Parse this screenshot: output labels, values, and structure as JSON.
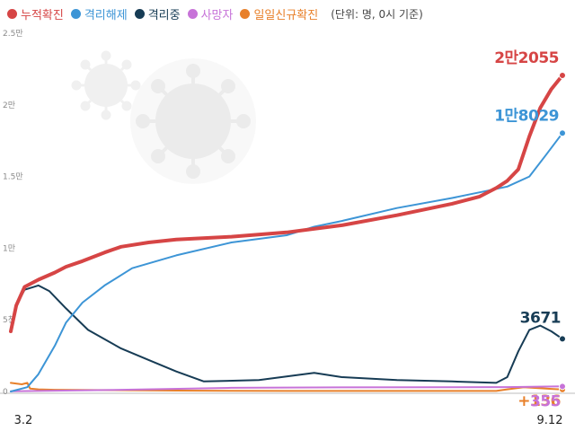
{
  "chart_data": {
    "type": "line",
    "title": "",
    "unit_note": "(단위: 명, 0시 기준)",
    "x_start_label": "3.2",
    "x_end_label": "9.12",
    "y_ticks": [
      "0",
      "5천",
      "1만",
      "1.5만",
      "2만",
      "2.5만"
    ],
    "ylim": [
      0,
      25000
    ],
    "grid": false,
    "legend_position": "top-left",
    "series": [
      {
        "name": "누적확진",
        "color": "#d64545",
        "end_label": "2만2055",
        "points": [
          [
            0,
            4200
          ],
          [
            0.01,
            6000
          ],
          [
            0.025,
            7300
          ],
          [
            0.05,
            7800
          ],
          [
            0.08,
            8300
          ],
          [
            0.1,
            8700
          ],
          [
            0.13,
            9100
          ],
          [
            0.17,
            9700
          ],
          [
            0.2,
            10100
          ],
          [
            0.25,
            10400
          ],
          [
            0.3,
            10600
          ],
          [
            0.4,
            10800
          ],
          [
            0.5,
            11100
          ],
          [
            0.6,
            11600
          ],
          [
            0.7,
            12300
          ],
          [
            0.75,
            12700
          ],
          [
            0.8,
            13100
          ],
          [
            0.85,
            13600
          ],
          [
            0.88,
            14200
          ],
          [
            0.9,
            14700
          ],
          [
            0.92,
            15500
          ],
          [
            0.94,
            17800
          ],
          [
            0.96,
            19800
          ],
          [
            0.98,
            21100
          ],
          [
            1,
            22055
          ]
        ]
      },
      {
        "name": "격리해제",
        "color": "#3d95d6",
        "end_label": "1만8029",
        "points": [
          [
            0,
            0
          ],
          [
            0.03,
            300
          ],
          [
            0.05,
            1200
          ],
          [
            0.08,
            3200
          ],
          [
            0.1,
            4800
          ],
          [
            0.13,
            6200
          ],
          [
            0.17,
            7400
          ],
          [
            0.22,
            8600
          ],
          [
            0.3,
            9500
          ],
          [
            0.4,
            10400
          ],
          [
            0.5,
            10900
          ],
          [
            0.55,
            11500
          ],
          [
            0.6,
            11900
          ],
          [
            0.7,
            12800
          ],
          [
            0.8,
            13500
          ],
          [
            0.85,
            13900
          ],
          [
            0.9,
            14300
          ],
          [
            0.94,
            15000
          ],
          [
            0.97,
            16500
          ],
          [
            1,
            18029
          ]
        ]
      },
      {
        "name": "격리중",
        "color": "#173c55",
        "end_label": "3671",
        "points": [
          [
            0,
            4200
          ],
          [
            0.01,
            6000
          ],
          [
            0.025,
            7100
          ],
          [
            0.05,
            7400
          ],
          [
            0.07,
            7000
          ],
          [
            0.1,
            5800
          ],
          [
            0.14,
            4300
          ],
          [
            0.2,
            3000
          ],
          [
            0.25,
            2200
          ],
          [
            0.3,
            1400
          ],
          [
            0.35,
            700
          ],
          [
            0.45,
            800
          ],
          [
            0.55,
            1300
          ],
          [
            0.6,
            1000
          ],
          [
            0.7,
            800
          ],
          [
            0.8,
            700
          ],
          [
            0.88,
            600
          ],
          [
            0.9,
            1000
          ],
          [
            0.92,
            2800
          ],
          [
            0.94,
            4300
          ],
          [
            0.96,
            4600
          ],
          [
            0.98,
            4200
          ],
          [
            1,
            3671
          ]
        ]
      },
      {
        "name": "사망자",
        "color": "#c773d8",
        "end_label": "355",
        "points": [
          [
            0,
            20
          ],
          [
            0.2,
            120
          ],
          [
            0.4,
            260
          ],
          [
            0.6,
            290
          ],
          [
            0.8,
            300
          ],
          [
            0.9,
            310
          ],
          [
            1,
            355
          ]
        ]
      },
      {
        "name": "일일신규확진",
        "color": "#e8802a",
        "end_label": "+136",
        "points": [
          [
            0,
            600
          ],
          [
            0.02,
            500
          ],
          [
            0.03,
            600
          ],
          [
            0.035,
            200
          ],
          [
            0.05,
            150
          ],
          [
            0.08,
            120
          ],
          [
            0.15,
            100
          ],
          [
            0.3,
            60
          ],
          [
            0.5,
            40
          ],
          [
            0.7,
            40
          ],
          [
            0.88,
            40
          ],
          [
            0.9,
            150
          ],
          [
            0.93,
            300
          ],
          [
            0.95,
            250
          ],
          [
            0.98,
            180
          ],
          [
            1,
            136
          ]
        ]
      }
    ]
  }
}
